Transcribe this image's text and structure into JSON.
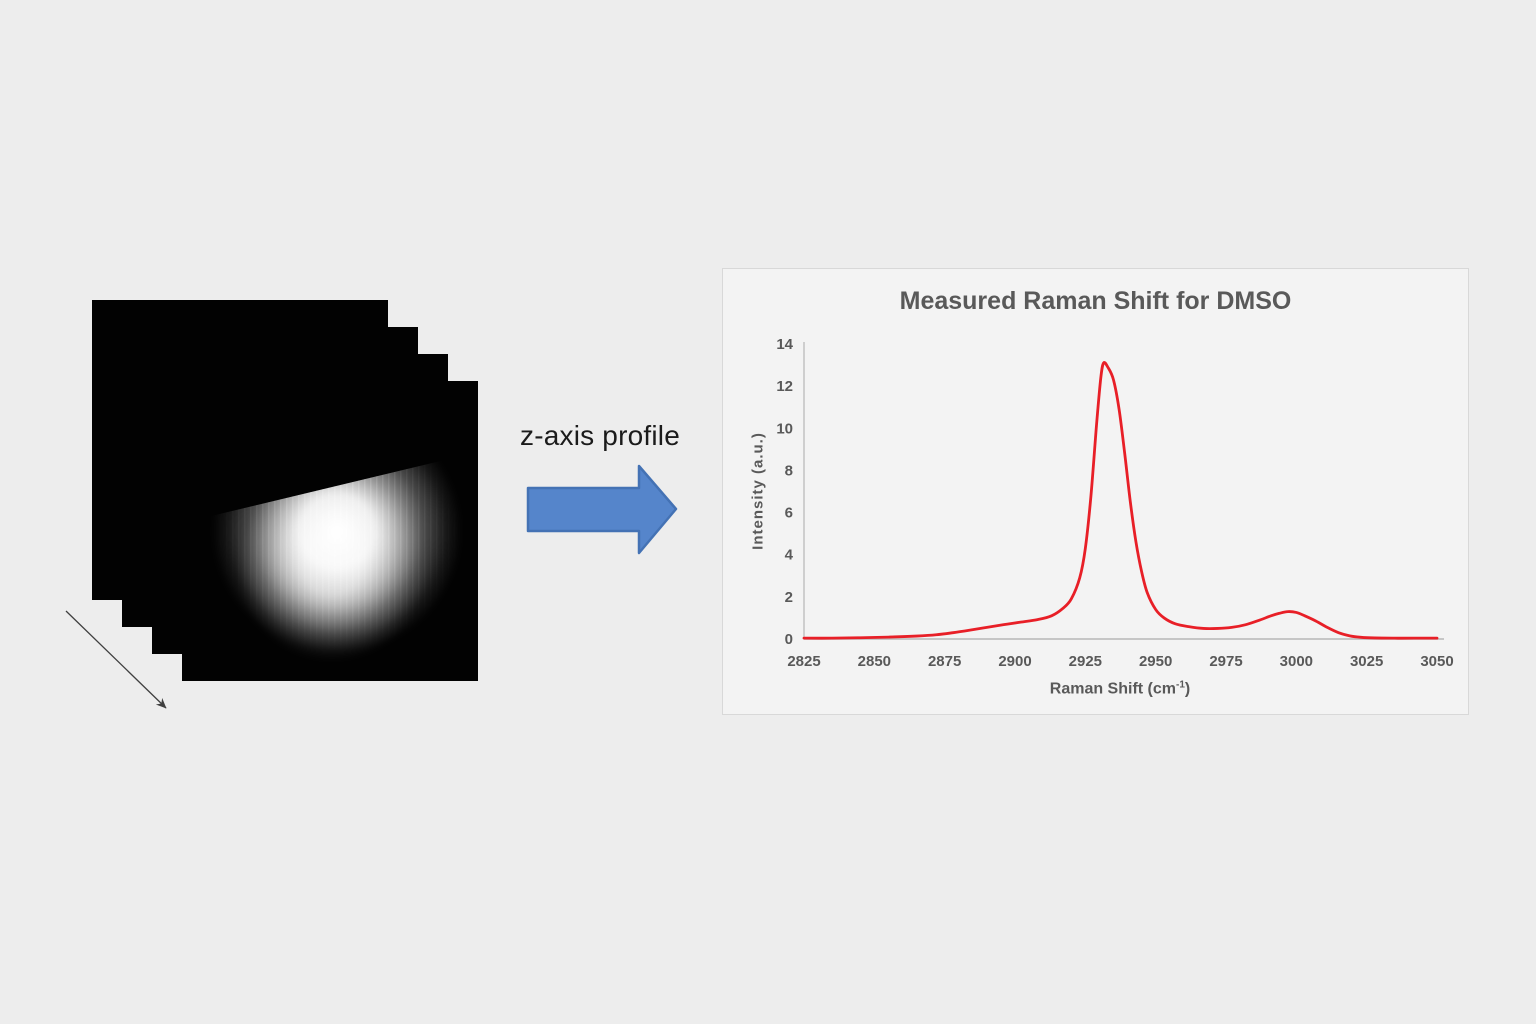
{
  "colors": {
    "page_bg": "#ededed",
    "panel_bg": "#f3f3f3",
    "panel_border": "#d8d8d8",
    "axis_gray": "#bfbfbf",
    "text_gray": "#595959",
    "line_red": "#e81f27",
    "arrow_fill": "#5585cb",
    "arrow_border": "#4472b4",
    "stack_black": "#020202",
    "depth_arrow_gray": "#3f3f3f",
    "label_black": "#1b1b1b"
  },
  "stack": {
    "layer_count": 4
  },
  "flow": {
    "label": "z-axis profile"
  },
  "chart_data": {
    "type": "line",
    "title": "Measured Raman Shift for DMSO",
    "ylabel": "Intensity (a.u.)",
    "xlabel_parts": {
      "prefix": "Raman Shift (cm",
      "sup": "-1",
      "suffix": ")"
    },
    "xlim": [
      2825,
      3050
    ],
    "ylim": [
      0,
      14
    ],
    "x_ticks": [
      2825,
      2850,
      2875,
      2900,
      2925,
      2950,
      2975,
      3000,
      3025,
      3050
    ],
    "y_ticks": [
      0,
      2,
      4,
      6,
      8,
      10,
      12,
      14
    ],
    "grid": false,
    "legend": "none",
    "series": [
      {
        "name": "DMSO",
        "color": "#e81f27",
        "x": [
          2825,
          2835,
          2845,
          2855,
          2865,
          2872,
          2878,
          2884,
          2890,
          2896,
          2902,
          2908,
          2913,
          2917,
          2920,
          2923,
          2925,
          2927,
          2929,
          2930.5,
          2931.5,
          2933,
          2935,
          2937,
          2939,
          2941,
          2943,
          2945,
          2947,
          2950,
          2953,
          2957,
          2962,
          2967,
          2972,
          2977,
          2982,
          2987,
          2991,
          2994,
          2997,
          3000,
          3003,
          3007,
          3011,
          3015,
          3019,
          3023,
          3028,
          3035,
          3042,
          3050
        ],
        "y": [
          0.04,
          0.04,
          0.06,
          0.09,
          0.14,
          0.2,
          0.3,
          0.42,
          0.55,
          0.68,
          0.8,
          0.92,
          1.1,
          1.45,
          1.9,
          2.9,
          4.3,
          6.8,
          10.2,
          12.4,
          13.1,
          12.9,
          12.3,
          10.9,
          8.8,
          6.5,
          4.6,
          3.2,
          2.2,
          1.4,
          1.0,
          0.72,
          0.58,
          0.5,
          0.5,
          0.55,
          0.68,
          0.9,
          1.1,
          1.22,
          1.3,
          1.26,
          1.1,
          0.85,
          0.55,
          0.3,
          0.15,
          0.08,
          0.05,
          0.04,
          0.04,
          0.04
        ]
      }
    ]
  }
}
